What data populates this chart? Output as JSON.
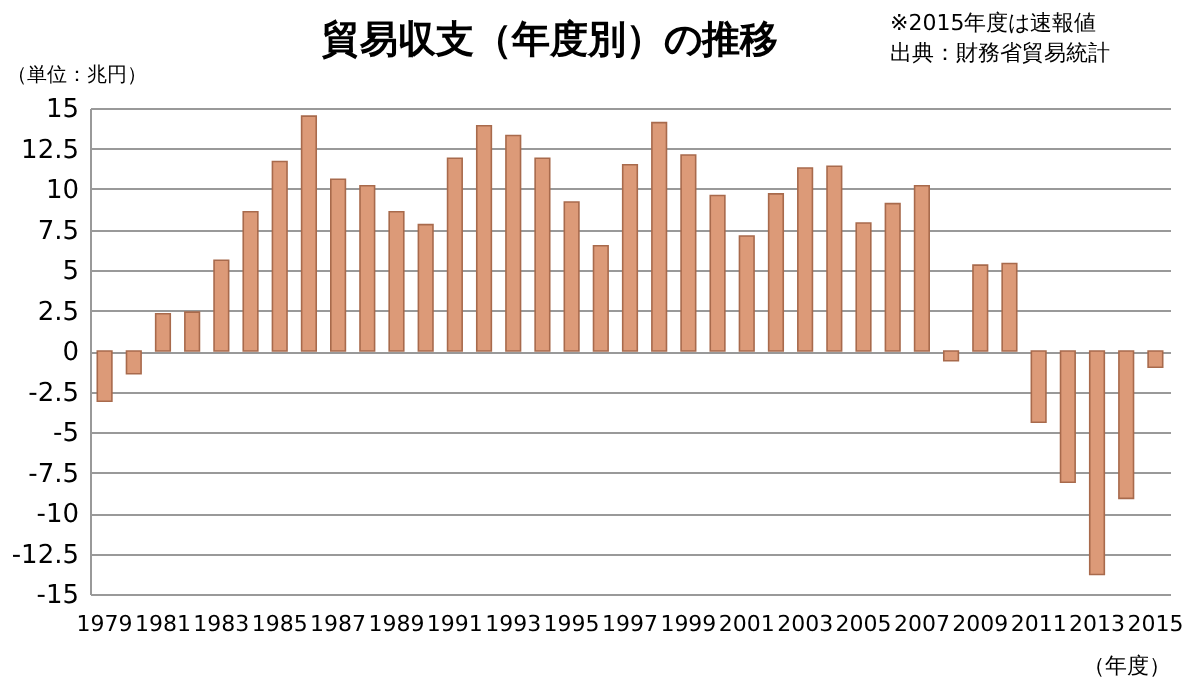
{
  "chart_data": {
    "type": "bar",
    "title": "貿易収支（年度別）の推移",
    "ylabel": "（単位：兆円）",
    "xlabel": "（年度）",
    "annotations": [
      "※2015年度は速報値",
      "出典：財務省貿易統計"
    ],
    "categories": [
      "1979",
      null,
      "1981",
      null,
      "1983",
      null,
      "1985",
      null,
      "1987",
      null,
      "1989",
      null,
      "1991",
      null,
      "1993",
      null,
      "1995",
      null,
      "1997",
      null,
      "1999",
      null,
      "2001",
      null,
      "2003",
      null,
      "2005",
      null,
      "2007",
      null,
      "2009",
      null,
      "2011",
      null,
      "2013",
      null,
      "2015"
    ],
    "values": [
      -3.1,
      -1.4,
      2.3,
      2.4,
      5.6,
      8.6,
      11.7,
      14.5,
      10.6,
      10.2,
      8.6,
      7.8,
      11.9,
      13.9,
      13.3,
      11.9,
      9.2,
      6.5,
      11.5,
      14.1,
      12.1,
      9.6,
      7.1,
      9.7,
      11.3,
      11.4,
      7.9,
      9.1,
      10.2,
      -0.6,
      5.3,
      5.4,
      -4.4,
      -8.1,
      -13.8,
      -9.1,
      -1.0
    ],
    "color": "#dc9a78",
    "ylim": [
      -15,
      15
    ],
    "yticks": [
      -15,
      -12.5,
      -10,
      -7.5,
      -5,
      -2.5,
      0,
      2.5,
      5,
      7.5,
      10,
      12.5,
      15
    ],
    "grid": "y"
  }
}
